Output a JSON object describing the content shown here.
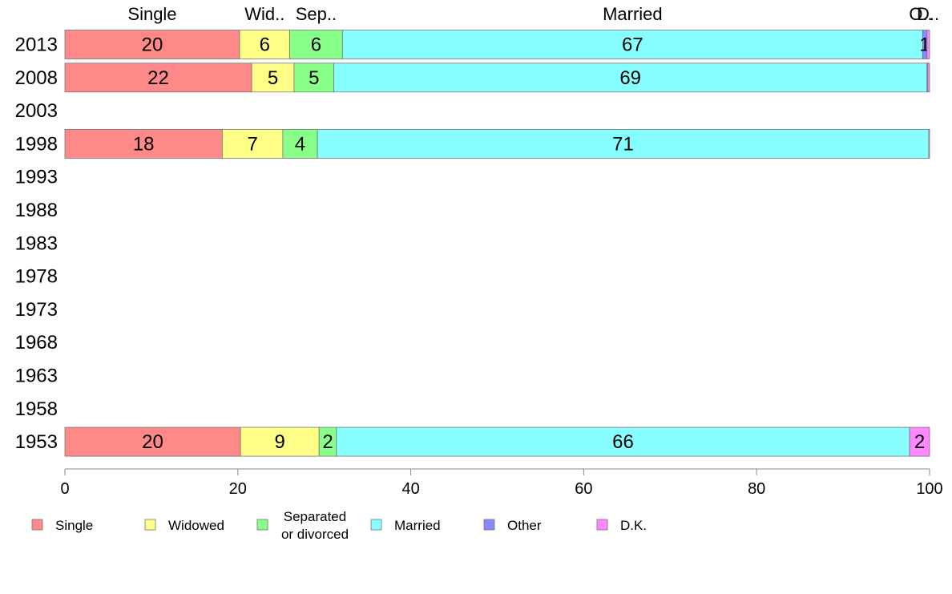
{
  "chart_data": {
    "type": "bar",
    "orientation": "horizontal",
    "stacked": true,
    "xlim": [
      0,
      100
    ],
    "x_ticks": [
      "0",
      "20",
      "40",
      "60",
      "80",
      "100"
    ],
    "categories": [
      "2013",
      "2008",
      "2003",
      "1998",
      "1993",
      "1988",
      "1983",
      "1978",
      "1973",
      "1968",
      "1963",
      "1958",
      "1953"
    ],
    "top_labels": [
      {
        "text": "Single",
        "series": 0
      },
      {
        "text": "Wid..",
        "series": 1
      },
      {
        "text": "Sep..",
        "series": 2
      },
      {
        "text": "Married",
        "series": 3
      },
      {
        "text": "O..",
        "series": 4
      },
      {
        "text": "D..",
        "series": 5
      }
    ],
    "series": [
      {
        "name": "Single",
        "color": "#ff8888",
        "values": [
          20.2,
          21.6,
          null,
          18.2,
          null,
          null,
          null,
          null,
          null,
          null,
          null,
          null,
          20.3
        ]
      },
      {
        "name": "Widowed",
        "color": "#ffff88",
        "values": [
          5.8,
          4.9,
          null,
          7.0,
          null,
          null,
          null,
          null,
          null,
          null,
          null,
          null,
          9.1
        ]
      },
      {
        "name": "Separated\nor divorced",
        "color": "#88ff88",
        "values": [
          6.1,
          4.6,
          null,
          4.0,
          null,
          null,
          null,
          null,
          null,
          null,
          null,
          null,
          2.0
        ]
      },
      {
        "name": "Married",
        "color": "#88ffff",
        "values": [
          67.1,
          68.6,
          null,
          70.7,
          null,
          null,
          null,
          null,
          null,
          null,
          null,
          null,
          66.3
        ]
      },
      {
        "name": "Other",
        "color": "#8888ff",
        "values": [
          0.5,
          0.1,
          null,
          0.0,
          null,
          null,
          null,
          null,
          null,
          null,
          null,
          null,
          0.0
        ]
      },
      {
        "name": "D.K.",
        "color": "#ff88ff",
        "values": [
          0.3,
          0.2,
          null,
          0.1,
          null,
          null,
          null,
          null,
          null,
          null,
          null,
          null,
          2.3
        ]
      }
    ],
    "segment_labels": [
      [
        "20",
        "6",
        "6",
        "67",
        "1",
        ""
      ],
      [
        "22",
        "5",
        "5",
        "69",
        "",
        ""
      ],
      [
        "",
        "",
        "",
        "",
        "",
        ""
      ],
      [
        "18",
        "7",
        "4",
        "71",
        "",
        ""
      ],
      [
        "",
        "",
        "",
        "",
        "",
        ""
      ],
      [
        "",
        "",
        "",
        "",
        "",
        ""
      ],
      [
        "",
        "",
        "",
        "",
        "",
        ""
      ],
      [
        "",
        "",
        "",
        "",
        "",
        ""
      ],
      [
        "",
        "",
        "",
        "",
        "",
        ""
      ],
      [
        "",
        "",
        "",
        "",
        "",
        ""
      ],
      [
        "",
        "",
        "",
        "",
        "",
        ""
      ],
      [
        "",
        "",
        "",
        "",
        "",
        ""
      ],
      [
        "20",
        "9",
        "2",
        "66",
        "",
        "2"
      ]
    ],
    "legend": {
      "placement": "bottom",
      "entries": [
        "Single",
        "Widowed",
        "Separated\nor divorced",
        "Married",
        "Other",
        "D.K."
      ]
    }
  }
}
